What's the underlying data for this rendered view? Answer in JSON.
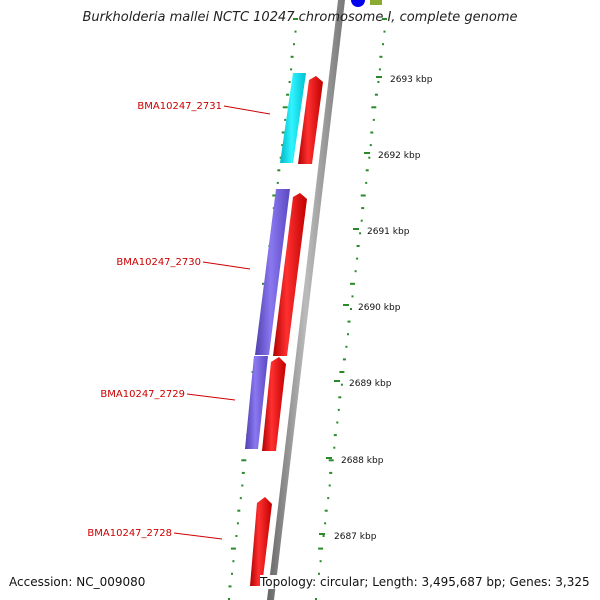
{
  "header": {
    "title": "Burkholderia mallei NCTC 10247 chromosome I, complete genome"
  },
  "footer": {
    "accession": "Accession: NC_009080",
    "topology": "Topology: circular; Length: 3,495,687 bp; Genes: 3,325"
  },
  "ticks": [
    "2693 kbp",
    "2692 kbp",
    "2691 kbp",
    "2690 kbp",
    "2689 kbp",
    "2688 kbp",
    "2687 kbp"
  ],
  "genes": [
    {
      "name": "BMA10247_2731"
    },
    {
      "name": "BMA10247_2730"
    },
    {
      "name": "BMA10247_2729"
    },
    {
      "name": "BMA10247_2728"
    }
  ],
  "colors": {
    "cds": "#ff0000",
    "feature_a": "#00e5ee",
    "feature_b": "#7060d8",
    "backbone": "#888888",
    "dots": "#2a8a2a",
    "label": "#cc0000",
    "marker_blue": "#0000ee",
    "marker_olive": "#8aaa30"
  }
}
